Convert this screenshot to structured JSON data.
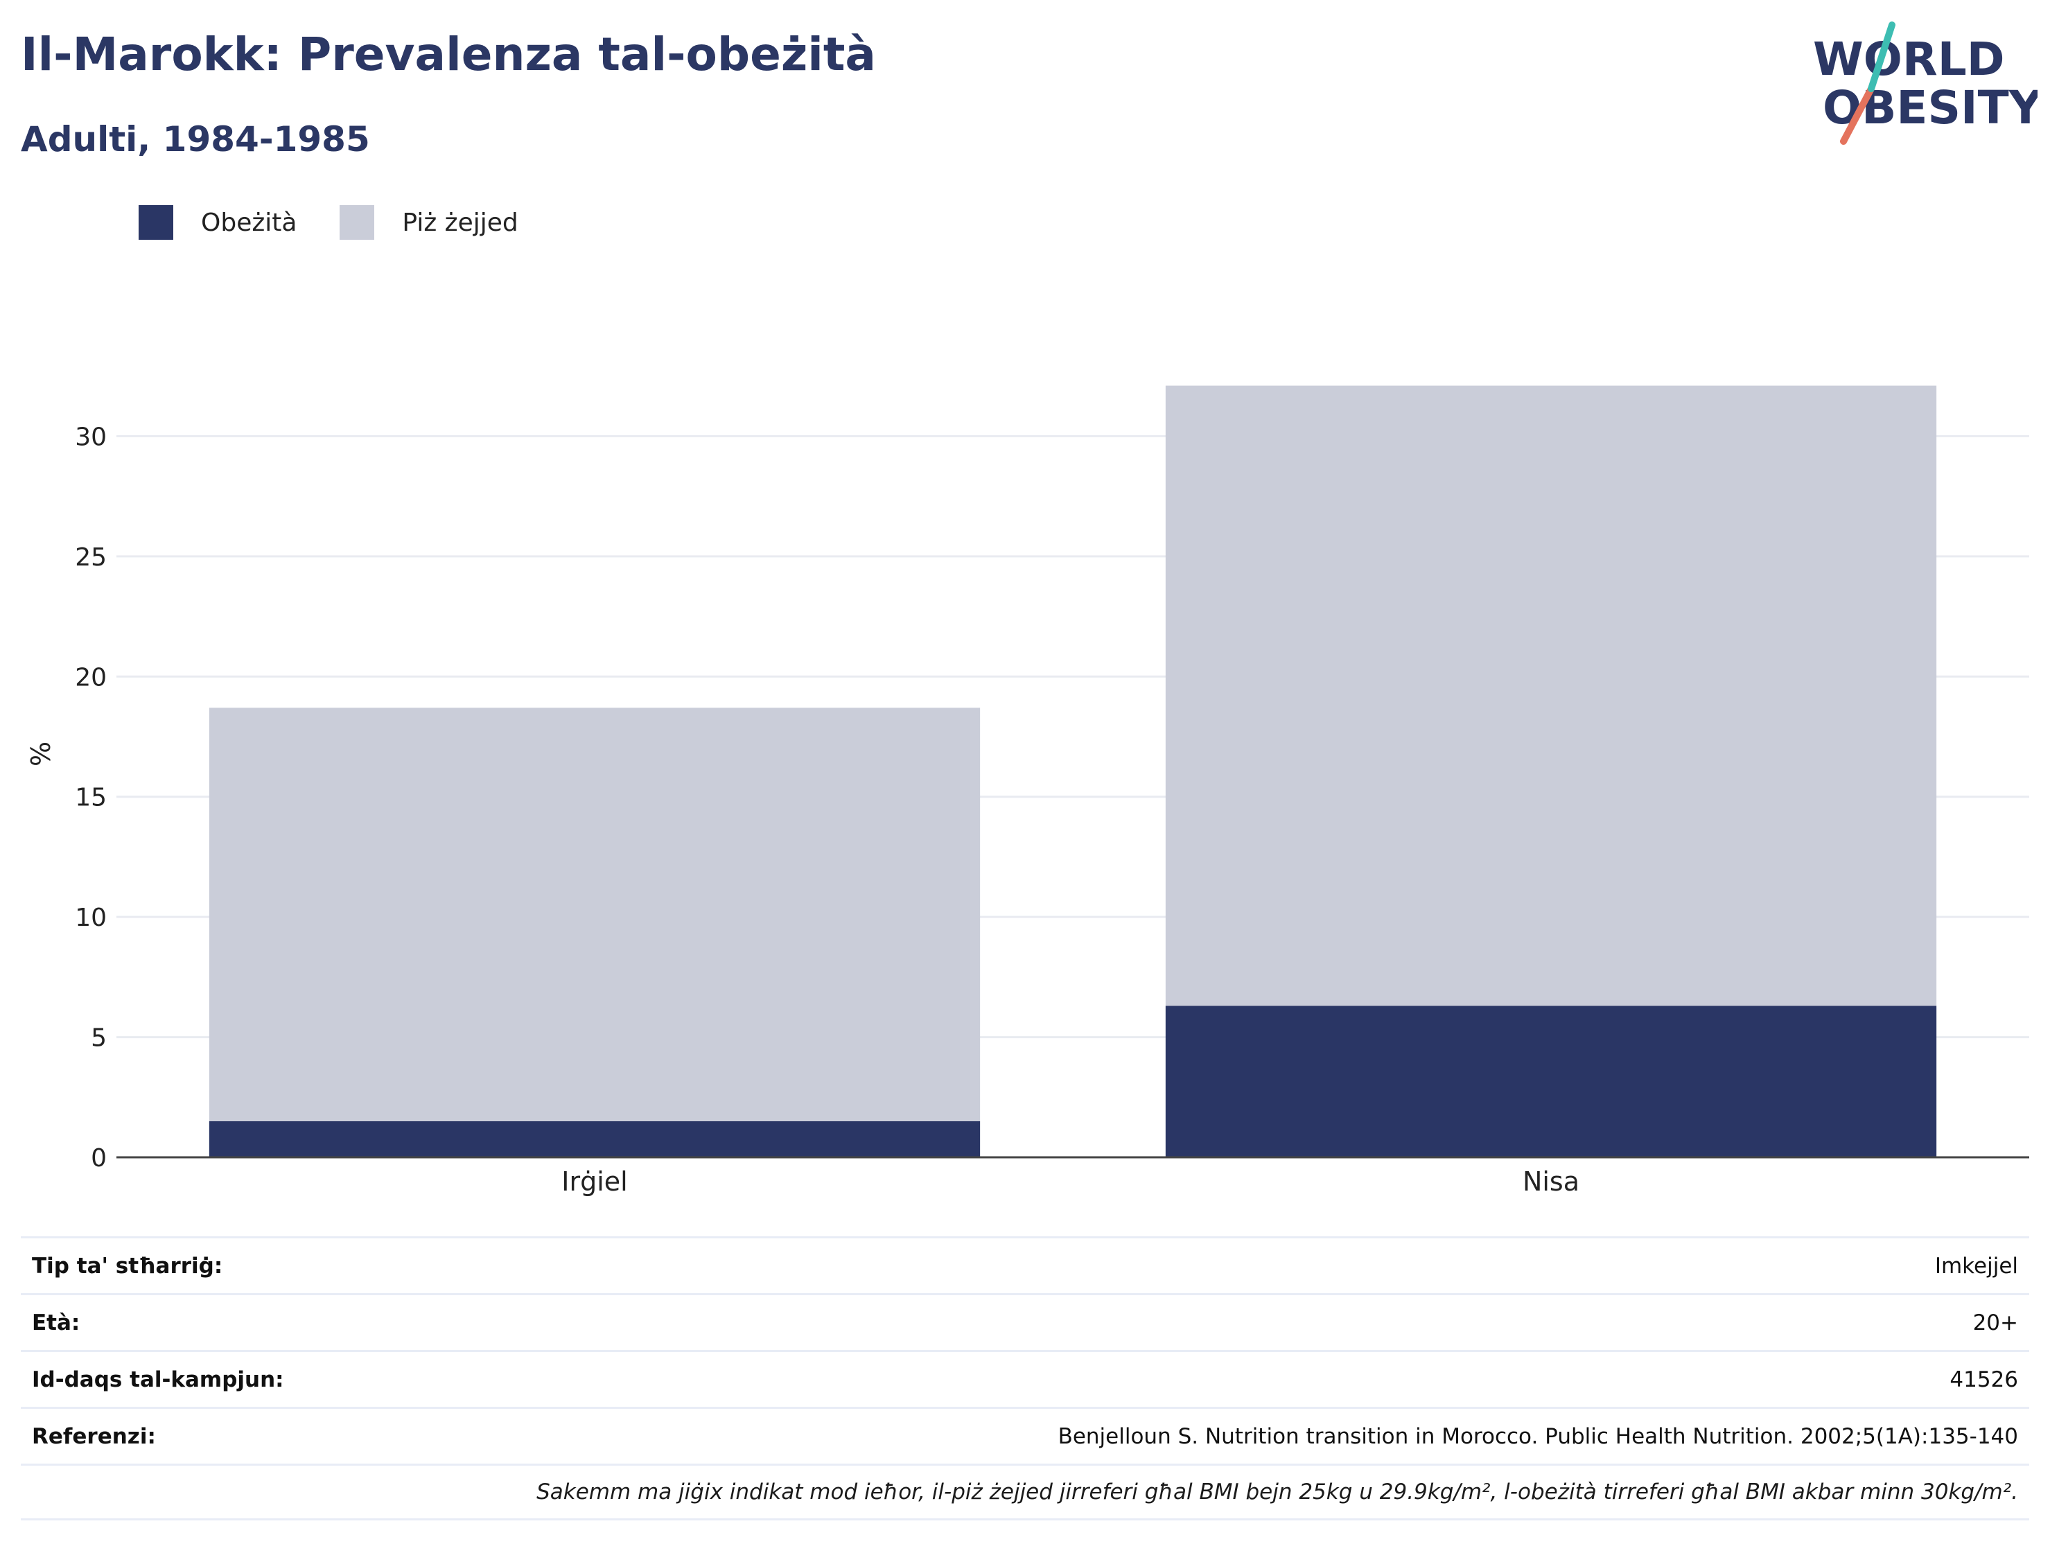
{
  "header": {
    "title": "Il-Marokk: Prevalenza tal-obeżità",
    "subtitle": "Adulti, 1984-1985"
  },
  "logo": {
    "line1": "WORLD",
    "line2": "OBESITY"
  },
  "colors": {
    "obesity": "#2a3665",
    "overweight": "#cacdd9",
    "title": "#2b3764"
  },
  "legend": [
    {
      "label": "Obeżità",
      "color": "#2a3665"
    },
    {
      "label": "Piż żejjed",
      "color": "#cacdd9"
    }
  ],
  "chart_data": {
    "type": "bar",
    "stacked": true,
    "categories": [
      "Irġiel",
      "Nisa"
    ],
    "series": [
      {
        "name": "Obeżità",
        "values": [
          1.5,
          6.3
        ]
      },
      {
        "name": "Piż żejjed",
        "values": [
          17.2,
          25.8
        ]
      }
    ],
    "ylabel": "%",
    "ylim": [
      0,
      32
    ],
    "yticks": [
      0,
      5,
      10,
      15,
      20,
      25,
      30
    ],
    "grid": true,
    "legend_position": "top-left"
  },
  "info": [
    {
      "key": "Tip ta' stħarriġ:",
      "value": "Imkejjel"
    },
    {
      "key": "Età:",
      "value": "20+"
    },
    {
      "key": "Id-daqs tal-kampjun:",
      "value": "41526"
    },
    {
      "key": "Referenzi:",
      "value": "Benjelloun S. Nutrition transition in Morocco. Public Health Nutrition. 2002;5(1A):135-140"
    }
  ],
  "note": "Sakemm ma jiġix indikat mod ieħor, il-piż żejjed jirreferi għal BMI bejn 25kg u 29.9kg/m², l-obeżità tirreferi għal BMI akbar minn 30kg/m²."
}
